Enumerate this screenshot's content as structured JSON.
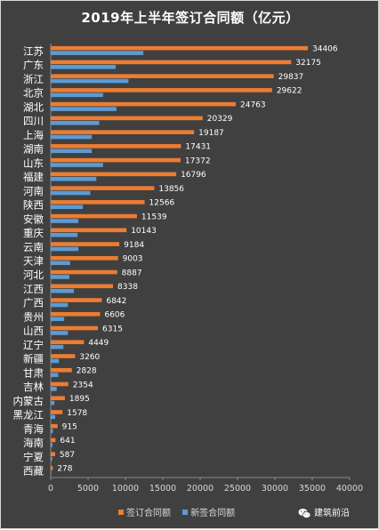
{
  "chart_data": {
    "type": "bar",
    "title": "2019年上半年签订合同额（亿元）",
    "categories": [
      "江苏",
      "广东",
      "浙江",
      "北京",
      "湖北",
      "四川",
      "上海",
      "湖南",
      "山东",
      "福建",
      "河南",
      "陕西",
      "安徽",
      "重庆",
      "云南",
      "天津",
      "河北",
      "江西",
      "广西",
      "贵州",
      "山西",
      "辽宁",
      "新疆",
      "甘肃",
      "吉林",
      "内蒙古",
      "黑龙江",
      "青海",
      "海南",
      "宁夏",
      "西藏"
    ],
    "series": [
      {
        "name": "签订合同额",
        "color": "#ed7d31",
        "values": [
          34406,
          32175,
          29837,
          29622,
          24763,
          20329,
          19187,
          17431,
          17372,
          16796,
          13856,
          12566,
          11539,
          10143,
          9184,
          9003,
          8887,
          8338,
          6842,
          6606,
          6315,
          4449,
          3260,
          2828,
          2354,
          1895,
          1578,
          915,
          641,
          587,
          278
        ],
        "labels": [
          "34406",
          "32175",
          "29837",
          "29622",
          "24763",
          "20329",
          "19187",
          "17431",
          "17372",
          "16796",
          "13856",
          "12566",
          "11539",
          "10143",
          "9184",
          "9003",
          "8887",
          "8338",
          "6842",
          "6606",
          "6315",
          "4449",
          "3260",
          "2828",
          "2354",
          "1895",
          "1578",
          "915",
          "641",
          "587",
          "278"
        ]
      },
      {
        "name": "新签合同额",
        "color": "#5b9bd5",
        "values": [
          12400,
          8700,
          10400,
          7000,
          8800,
          6500,
          5500,
          5500,
          7000,
          6100,
          5300,
          4300,
          3700,
          3600,
          3700,
          2600,
          2500,
          3100,
          2300,
          1800,
          2300,
          1700,
          1100,
          1000,
          800,
          500,
          600,
          300,
          250,
          200,
          80
        ]
      }
    ],
    "xaxis": {
      "ticks": [
        "0",
        "5000",
        "10000",
        "15000",
        "20000",
        "25000",
        "30000",
        "35000",
        "40000"
      ],
      "range": [
        0,
        40000
      ],
      "gridlines": false
    },
    "legend_position": "bottom",
    "orientation": "horizontal"
  },
  "watermark": {
    "label": "建筑前沿",
    "icon": "wechat-icon"
  }
}
